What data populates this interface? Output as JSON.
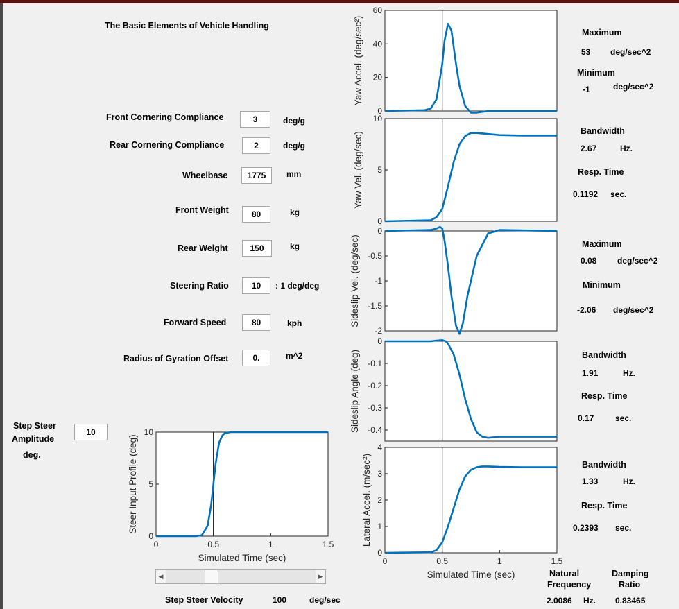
{
  "app": {
    "title": "The Basic Elements of Vehicle Handling"
  },
  "params": [
    {
      "label": "Front Cornering Compliance",
      "value": "3",
      "unit": "deg/g"
    },
    {
      "label": "Rear Cornering Compliance",
      "value": "2",
      "unit": "deg/g"
    },
    {
      "label": "Wheelbase",
      "value": "1775",
      "unit": "mm"
    },
    {
      "label": "Front Weight",
      "value": "80",
      "unit": "kg"
    },
    {
      "label": "Rear Weight",
      "value": "150",
      "unit": "kg"
    },
    {
      "label": "Steering Ratio",
      "value": "10",
      "unit": ": 1 deg/deg"
    },
    {
      "label": "Forward Speed",
      "value": "80",
      "unit": "kph"
    },
    {
      "label": "Radius of Gyration Offset",
      "value": "0.",
      "unit": "m^2"
    }
  ],
  "step": {
    "label1": "Step Steer",
    "label2": "Amplitude",
    "label3": "deg.",
    "value": "10"
  },
  "step_velocity": {
    "label": "Step Steer Velocity",
    "value": "100",
    "unit": "deg/sec",
    "slider_fraction": 0.28
  },
  "results": {
    "yaw_accel": {
      "max_label": "Maximum",
      "max_value": "53",
      "max_unit": "deg/sec^2",
      "min_label": "Minimum",
      "min_value": "-1",
      "min_unit": "deg/sec^2"
    },
    "yaw_vel": {
      "bw_label": "Bandwidth",
      "bw_value": "2.67",
      "bw_unit": "Hz.",
      "rt_label": "Resp. Time",
      "rt_value": "0.1192",
      "rt_unit": "sec."
    },
    "sideslip_vel": {
      "max_label": "Maximum",
      "max_value": "0.08",
      "max_unit": "deg/sec^2",
      "min_label": "Minimum",
      "min_value": "-2.06",
      "min_unit": "deg/sec^2"
    },
    "sideslip_angle": {
      "bw_label": "Bandwidth",
      "bw_value": "1.91",
      "bw_unit": "Hz.",
      "rt_label": "Resp. Time",
      "rt_value": "0.17",
      "rt_unit": "sec."
    },
    "lateral_accel": {
      "bw_label": "Bandwidth",
      "bw_value": "1.33",
      "bw_unit": "Hz.",
      "rt_label": "Resp. Time",
      "rt_value": "0.2393",
      "rt_unit": "sec."
    },
    "natural_frequency": {
      "label1": "Natural",
      "label2": "Frequency",
      "value": "2.0086",
      "unit": "Hz."
    },
    "damping_ratio": {
      "label1": "Damping",
      "label2": "Ratio",
      "value": "0.83465"
    }
  },
  "chart_data": [
    {
      "type": "line",
      "id": "steer",
      "xlabel": "Simulated Time (sec)",
      "ylabel": "Steer Input Profile (deg)",
      "xlim": [
        0,
        1.5
      ],
      "ylim": [
        0,
        10
      ],
      "xticks": [
        "0",
        "0.5",
        "1",
        "1.5"
      ],
      "xtickvals": [
        0,
        0.5,
        1,
        1.5
      ],
      "yticks": [
        "0",
        "5",
        "10"
      ],
      "ytickvals": [
        0,
        5,
        10
      ],
      "vline": 0.5,
      "series": [
        {
          "x": [
            0,
            0.35,
            0.4,
            0.45,
            0.48,
            0.5,
            0.52,
            0.55,
            0.58,
            0.6,
            0.65,
            0.7,
            1.5
          ],
          "y": [
            0,
            0,
            0.1,
            1.0,
            3.0,
            5.0,
            7.0,
            9.0,
            9.7,
            9.9,
            10,
            10,
            10
          ]
        }
      ]
    },
    {
      "type": "line",
      "id": "yaw_accel",
      "xlabel": "",
      "ylabel": "Yaw Accel. (deg/sec²)",
      "xlim": [
        0,
        1.5
      ],
      "ylim": [
        0,
        60
      ],
      "xticks": [],
      "xtickvals": [],
      "yticks": [
        "0",
        "20",
        "40",
        "60"
      ],
      "ytickvals": [
        0,
        20,
        40,
        60
      ],
      "vline": 0.5,
      "series": [
        {
          "x": [
            0,
            0.35,
            0.4,
            0.45,
            0.5,
            0.52,
            0.55,
            0.58,
            0.62,
            0.65,
            0.7,
            0.75,
            0.8,
            0.85,
            0.9,
            1.0,
            1.5
          ],
          "y": [
            0,
            0.5,
            1.5,
            7,
            28,
            42,
            52,
            48,
            28,
            15,
            3,
            -1,
            -1,
            -0.5,
            0,
            0,
            0
          ]
        }
      ]
    },
    {
      "type": "line",
      "id": "yaw_vel",
      "xlabel": "",
      "ylabel": "Yaw Vel. (deg/sec)",
      "xlim": [
        0,
        1.5
      ],
      "ylim": [
        0,
        10
      ],
      "xticks": [],
      "xtickvals": [],
      "yticks": [
        "0",
        "5",
        "10"
      ],
      "ytickvals": [
        0,
        5,
        10
      ],
      "vline": 0.5,
      "series": [
        {
          "x": [
            0,
            0.4,
            0.45,
            0.5,
            0.55,
            0.6,
            0.65,
            0.7,
            0.75,
            0.8,
            0.9,
            1.0,
            1.2,
            1.5
          ],
          "y": [
            0,
            0.1,
            0.4,
            1.2,
            3.4,
            5.8,
            7.5,
            8.3,
            8.6,
            8.6,
            8.5,
            8.4,
            8.35,
            8.35
          ]
        }
      ]
    },
    {
      "type": "line",
      "id": "sideslip_vel",
      "xlabel": "",
      "ylabel": "Sideslip Vel. (deg/sec)",
      "xlim": [
        0,
        1.5
      ],
      "ylim": [
        -2,
        0
      ],
      "xticks": [],
      "xtickvals": [],
      "yticks": [
        "-2",
        "-1.5",
        "-1",
        "-0.5",
        "0"
      ],
      "ytickvals": [
        -2,
        -1.5,
        -1,
        -0.5,
        0
      ],
      "vline": 0.5,
      "series": [
        {
          "x": [
            0,
            0.4,
            0.45,
            0.48,
            0.5,
            0.52,
            0.55,
            0.58,
            0.62,
            0.65,
            0.68,
            0.72,
            0.8,
            0.9,
            1.0,
            1.5
          ],
          "y": [
            0,
            0.02,
            0.05,
            0.08,
            0.05,
            -0.2,
            -0.7,
            -1.3,
            -1.9,
            -2.06,
            -1.85,
            -1.3,
            -0.5,
            -0.05,
            0.02,
            0
          ]
        }
      ]
    },
    {
      "type": "line",
      "id": "sideslip_angle",
      "xlabel": "",
      "ylabel": "Sideslip Angle (deg)",
      "xlim": [
        0,
        1.5
      ],
      "ylim": [
        -0.45,
        0
      ],
      "xticks": [],
      "xtickvals": [],
      "yticks": [
        "-0.4",
        "-0.3",
        "-0.2",
        "-0.1",
        "0"
      ],
      "ytickvals": [
        -0.4,
        -0.3,
        -0.2,
        -0.1,
        0
      ],
      "vline": 0.5,
      "series": [
        {
          "x": [
            0,
            0.4,
            0.45,
            0.5,
            0.53,
            0.55,
            0.6,
            0.65,
            0.7,
            0.75,
            0.8,
            0.85,
            0.9,
            1.0,
            1.5
          ],
          "y": [
            0,
            0,
            0.003,
            0.005,
            0,
            -0.01,
            -0.06,
            -0.15,
            -0.26,
            -0.35,
            -0.41,
            -0.43,
            -0.435,
            -0.43,
            -0.43
          ]
        }
      ]
    },
    {
      "type": "line",
      "id": "lateral_accel",
      "xlabel": "Simulated Time (sec)",
      "ylabel": "Lateral Accel. (m/sec²)",
      "xlim": [
        0,
        1.5
      ],
      "ylim": [
        0,
        4
      ],
      "xticks": [
        "0",
        "0.5",
        "1",
        "1.5"
      ],
      "xtickvals": [
        0,
        0.5,
        1,
        1.5
      ],
      "yticks": [
        "0",
        "1",
        "2",
        "3",
        "4"
      ],
      "ytickvals": [
        0,
        1,
        2,
        3,
        4
      ],
      "vline": 0.5,
      "series": [
        {
          "x": [
            0,
            0.4,
            0.45,
            0.5,
            0.55,
            0.6,
            0.65,
            0.7,
            0.75,
            0.8,
            0.85,
            0.9,
            1.0,
            1.2,
            1.5
          ],
          "y": [
            0,
            0.02,
            0.1,
            0.4,
            1.0,
            1.7,
            2.4,
            2.9,
            3.15,
            3.25,
            3.28,
            3.28,
            3.26,
            3.25,
            3.25
          ]
        }
      ]
    }
  ]
}
